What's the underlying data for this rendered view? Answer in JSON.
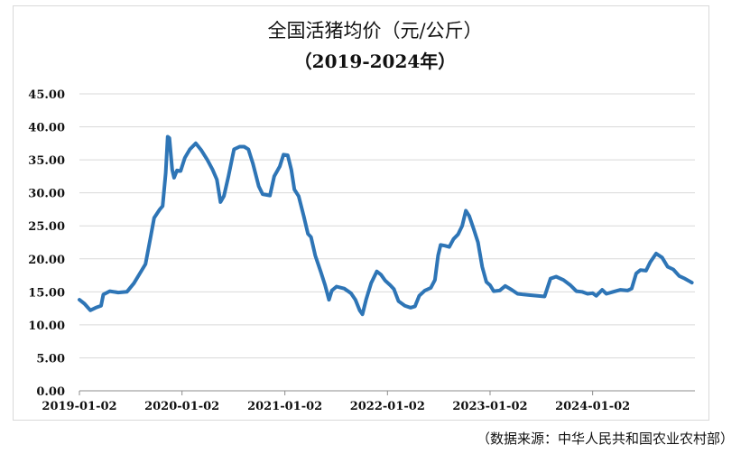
{
  "chart_data": {
    "type": "line",
    "title": "全国活猪均价（元/公斤）",
    "subtitle": "（2019-2024年）",
    "source": "（数据来源：中华人民共和国农业农村部）",
    "ylim": [
      0,
      45
    ],
    "yticks": [
      "0.00",
      "5.00",
      "10.00",
      "15.00",
      "20.00",
      "25.00",
      "30.00",
      "35.00",
      "40.00",
      "45.00"
    ],
    "xticks": [
      {
        "label": "2019-01-02",
        "x": "2019-01-02"
      },
      {
        "label": "2020-01-02",
        "x": "2020-01-02"
      },
      {
        "label": "2021-01-02",
        "x": "2021-01-02"
      },
      {
        "label": "2022-01-02",
        "x": "2022-01-02"
      },
      {
        "label": "2023-01-02",
        "x": "2023-01-02"
      },
      {
        "label": "2024-01-02",
        "x": "2024-01-02"
      }
    ],
    "grid": "horizontal",
    "line_color": "#2e75b6",
    "series": [
      {
        "points": [
          [
            "2019-01-02",
            13.8
          ],
          [
            "2019-01-20",
            13.2
          ],
          [
            "2019-02-10",
            12.2
          ],
          [
            "2019-03-01",
            12.6
          ],
          [
            "2019-03-20",
            12.9
          ],
          [
            "2019-03-28",
            14.6
          ],
          [
            "2019-04-20",
            15.1
          ],
          [
            "2019-05-20",
            14.9
          ],
          [
            "2019-06-20",
            15.0
          ],
          [
            "2019-07-15",
            16.3
          ],
          [
            "2019-08-05",
            17.8
          ],
          [
            "2019-08-25",
            19.2
          ],
          [
            "2019-09-10",
            22.8
          ],
          [
            "2019-09-25",
            26.2
          ],
          [
            "2019-10-15",
            27.5
          ],
          [
            "2019-10-25",
            28.0
          ],
          [
            "2019-11-05",
            33.0
          ],
          [
            "2019-11-12",
            38.5
          ],
          [
            "2019-11-18",
            38.3
          ],
          [
            "2019-11-28",
            33.5
          ],
          [
            "2019-12-05",
            32.3
          ],
          [
            "2019-12-15",
            33.4
          ],
          [
            "2019-12-28",
            33.3
          ],
          [
            "2020-01-12",
            35.3
          ],
          [
            "2020-01-30",
            36.6
          ],
          [
            "2020-02-20",
            37.5
          ],
          [
            "2020-03-10",
            36.5
          ],
          [
            "2020-04-01",
            35.0
          ],
          [
            "2020-04-20",
            33.5
          ],
          [
            "2020-05-05",
            32.0
          ],
          [
            "2020-05-18",
            28.6
          ],
          [
            "2020-05-30",
            29.5
          ],
          [
            "2020-06-15",
            32.5
          ],
          [
            "2020-07-05",
            36.6
          ],
          [
            "2020-07-25",
            37.0
          ],
          [
            "2020-08-10",
            37.0
          ],
          [
            "2020-08-25",
            36.6
          ],
          [
            "2020-09-10",
            34.5
          ],
          [
            "2020-10-01",
            31.0
          ],
          [
            "2020-10-15",
            29.8
          ],
          [
            "2020-11-10",
            29.6
          ],
          [
            "2020-11-25",
            32.5
          ],
          [
            "2020-12-15",
            34.0
          ],
          [
            "2020-12-28",
            35.8
          ],
          [
            "2021-01-12",
            35.7
          ],
          [
            "2021-01-25",
            33.5
          ],
          [
            "2021-02-05",
            30.5
          ],
          [
            "2021-02-20",
            29.5
          ],
          [
            "2021-03-10",
            26.5
          ],
          [
            "2021-03-25",
            23.8
          ],
          [
            "2021-04-05",
            23.3
          ],
          [
            "2021-04-20",
            20.5
          ],
          [
            "2021-05-10",
            18.0
          ],
          [
            "2021-05-25",
            16.0
          ],
          [
            "2021-06-08",
            13.8
          ],
          [
            "2021-06-18",
            15.2
          ],
          [
            "2021-07-05",
            15.8
          ],
          [
            "2021-08-01",
            15.5
          ],
          [
            "2021-08-25",
            14.8
          ],
          [
            "2021-09-10",
            13.8
          ],
          [
            "2021-09-25",
            12.2
          ],
          [
            "2021-10-05",
            11.6
          ],
          [
            "2021-10-18",
            13.8
          ],
          [
            "2021-11-05",
            16.3
          ],
          [
            "2021-11-25",
            18.1
          ],
          [
            "2021-12-10",
            17.6
          ],
          [
            "2021-12-25",
            16.7
          ],
          [
            "2022-01-12",
            16.0
          ],
          [
            "2022-01-25",
            15.4
          ],
          [
            "2022-02-10",
            13.6
          ],
          [
            "2022-03-05",
            12.9
          ],
          [
            "2022-03-25",
            12.6
          ],
          [
            "2022-04-10",
            12.8
          ],
          [
            "2022-04-25",
            14.4
          ],
          [
            "2022-05-15",
            15.2
          ],
          [
            "2022-06-05",
            15.6
          ],
          [
            "2022-06-20",
            16.8
          ],
          [
            "2022-07-01",
            20.5
          ],
          [
            "2022-07-10",
            22.1
          ],
          [
            "2022-07-25",
            22.0
          ],
          [
            "2022-08-10",
            21.8
          ],
          [
            "2022-08-25",
            23.0
          ],
          [
            "2022-09-10",
            23.7
          ],
          [
            "2022-09-25",
            25.0
          ],
          [
            "2022-10-08",
            27.3
          ],
          [
            "2022-10-20",
            26.5
          ],
          [
            "2022-11-05",
            24.5
          ],
          [
            "2022-11-20",
            22.5
          ],
          [
            "2022-12-05",
            18.8
          ],
          [
            "2022-12-20",
            16.5
          ],
          [
            "2023-01-02",
            16.0
          ],
          [
            "2023-01-15",
            15.1
          ],
          [
            "2023-02-05",
            15.2
          ],
          [
            "2023-02-25",
            15.9
          ],
          [
            "2023-03-20",
            15.3
          ],
          [
            "2023-04-10",
            14.7
          ],
          [
            "2023-05-01",
            14.6
          ],
          [
            "2023-05-25",
            14.5
          ],
          [
            "2023-06-20",
            14.4
          ],
          [
            "2023-07-15",
            14.3
          ],
          [
            "2023-08-05",
            17.0
          ],
          [
            "2023-08-25",
            17.3
          ],
          [
            "2023-09-20",
            16.8
          ],
          [
            "2023-10-15",
            16.0
          ],
          [
            "2023-11-05",
            15.1
          ],
          [
            "2023-11-25",
            15.0
          ],
          [
            "2023-12-15",
            14.7
          ],
          [
            "2024-01-02",
            14.8
          ],
          [
            "2024-01-15",
            14.4
          ],
          [
            "2024-02-05",
            15.3
          ],
          [
            "2024-02-20",
            14.7
          ],
          [
            "2024-03-15",
            15.0
          ],
          [
            "2024-04-10",
            15.3
          ],
          [
            "2024-05-05",
            15.2
          ],
          [
            "2024-05-20",
            15.5
          ],
          [
            "2024-06-05",
            17.8
          ],
          [
            "2024-06-20",
            18.3
          ],
          [
            "2024-07-10",
            18.2
          ],
          [
            "2024-07-25",
            19.5
          ],
          [
            "2024-08-15",
            20.8
          ],
          [
            "2024-09-05",
            20.2
          ],
          [
            "2024-09-25",
            18.8
          ],
          [
            "2024-10-15",
            18.4
          ],
          [
            "2024-11-05",
            17.4
          ],
          [
            "2024-11-25",
            17.0
          ],
          [
            "2024-12-20",
            16.4
          ]
        ]
      }
    ]
  }
}
